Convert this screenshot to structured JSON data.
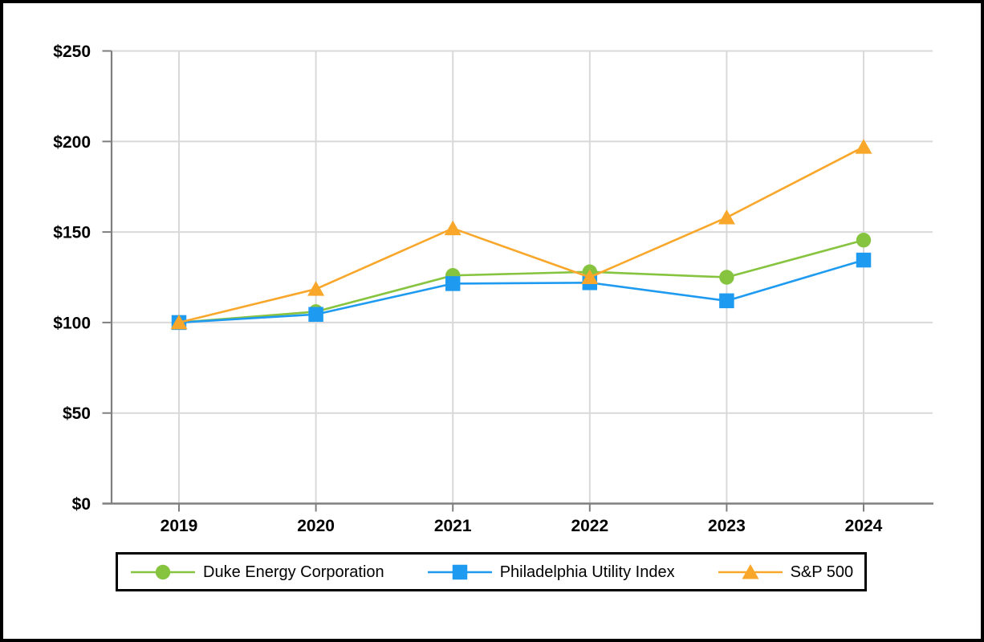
{
  "page": {
    "background_color": "#ffffff",
    "frame_border_color": "#000000",
    "gridline_color": "#d9d9d9",
    "axis_color": "#7f7f7f",
    "text_color": "#000000",
    "legend_border_color": "#000000"
  },
  "chart_data": {
    "type": "line",
    "title": "",
    "xlabel": "",
    "ylabel": "",
    "categories": [
      "2019",
      "2020",
      "2021",
      "2022",
      "2023",
      "2024"
    ],
    "series": [
      {
        "name": "Duke Energy Corporation",
        "marker": "circle",
        "color": "#86c440",
        "values": [
          100,
          106,
          126,
          128,
          125,
          145.5
        ]
      },
      {
        "name": "Philadelphia Utility Index",
        "marker": "square",
        "color": "#1e9bf0",
        "values": [
          100,
          104.5,
          121.5,
          122,
          112,
          134.5
        ]
      },
      {
        "name": "S&P 500",
        "marker": "triangle",
        "color": "#f9a72b",
        "values": [
          100,
          118.5,
          152,
          125,
          158,
          197
        ]
      }
    ],
    "ylim": [
      0,
      250
    ],
    "ytick_step": 50,
    "ytick_values": [
      0,
      50,
      100,
      150,
      200,
      250
    ],
    "ytick_labels": [
      "$0",
      "$50",
      "$100",
      "$150",
      "$200",
      "$250"
    ],
    "grid": true,
    "legend_position": "bottom"
  }
}
